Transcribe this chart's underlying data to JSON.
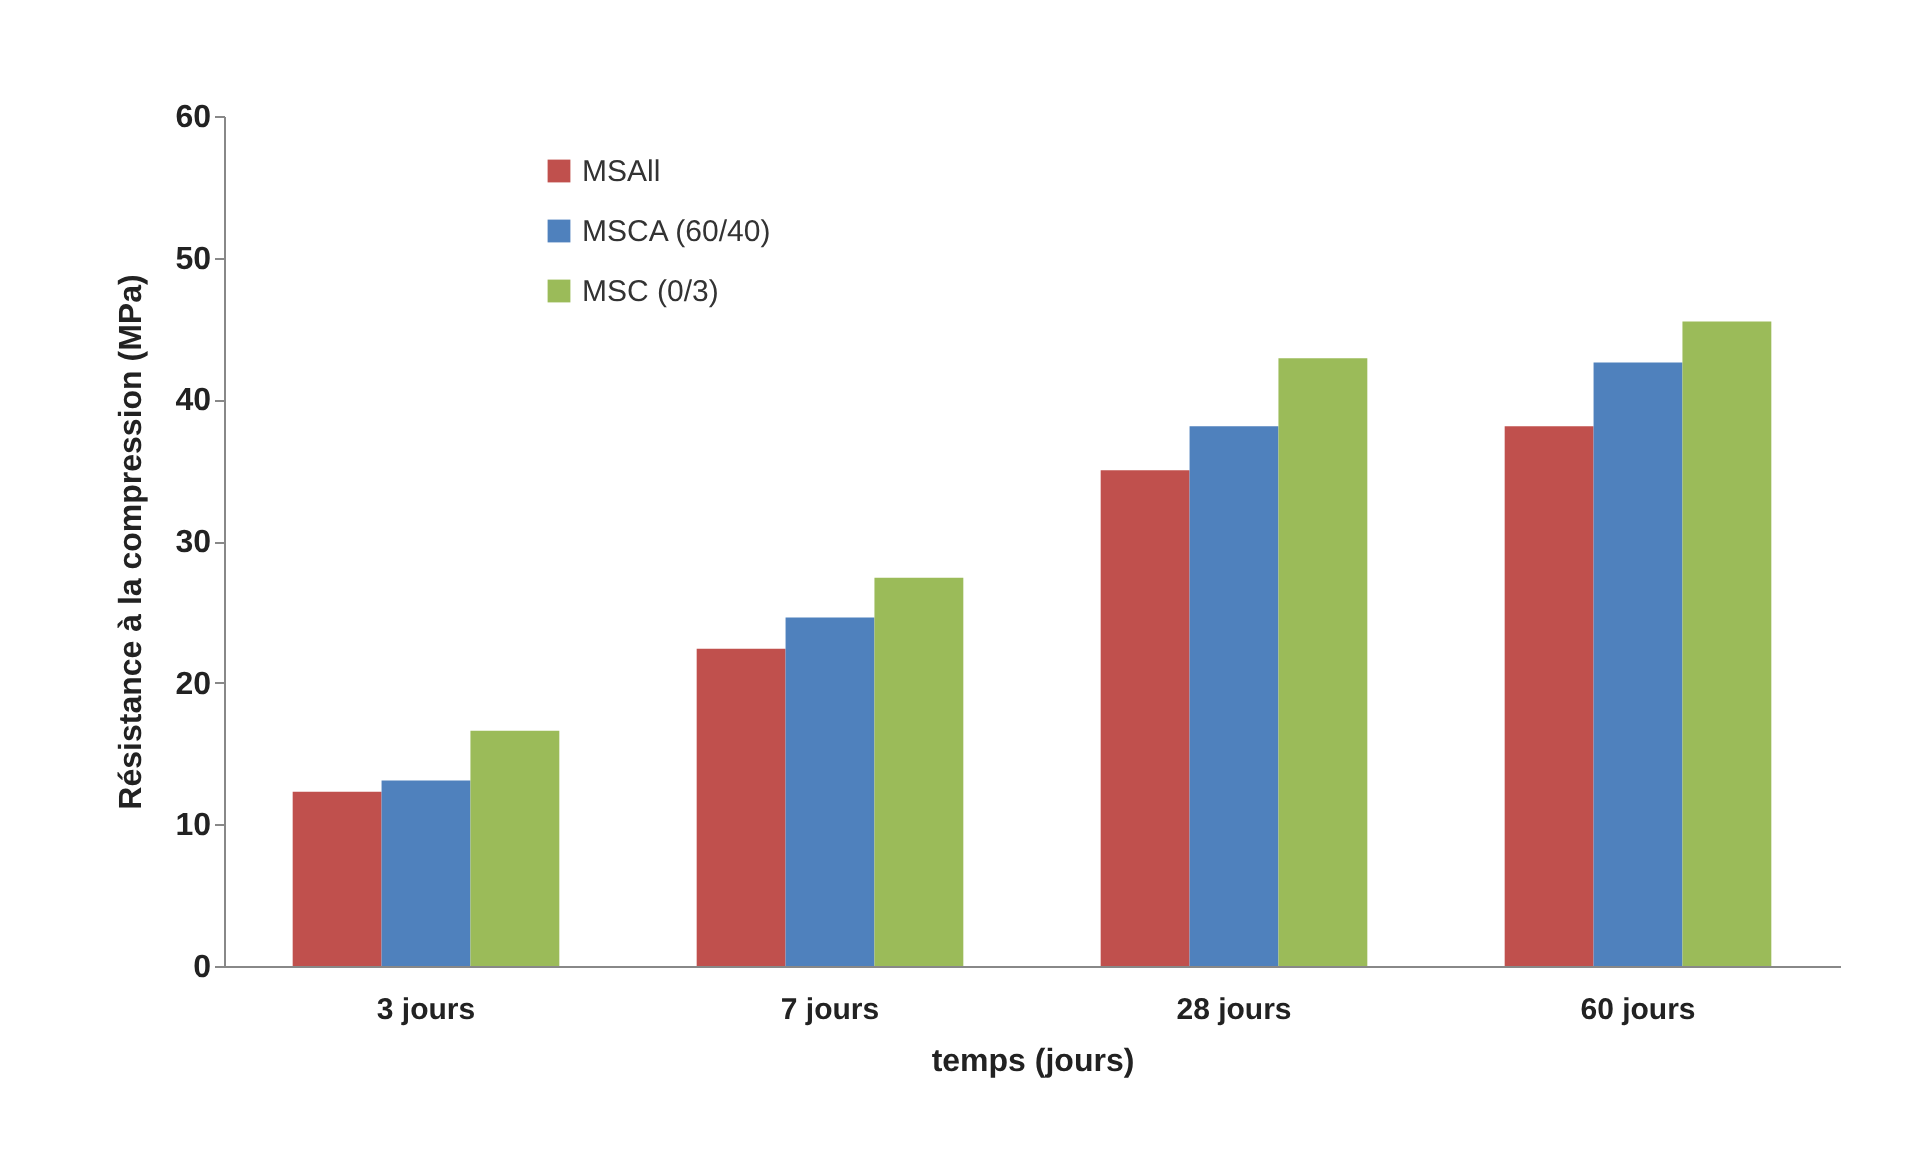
{
  "chart_data": {
    "type": "bar",
    "xlabel": "temps (jours)",
    "ylabel": "Résistance à la compression (MPa)",
    "categories": [
      "3 jours",
      "7 jours",
      "28 jours",
      "60 jours"
    ],
    "series": [
      {
        "name": "MSAll",
        "color": "#c0504d",
        "values": [
          12.3,
          22.4,
          35.0,
          38.1
        ]
      },
      {
        "name": "MSCA (60/40)",
        "color": "#4f81bd",
        "values": [
          13.1,
          24.6,
          38.1,
          42.6
        ]
      },
      {
        "name": "MSC (0/3)",
        "color": "#9bbb59",
        "values": [
          16.6,
          27.4,
          42.9,
          45.5
        ]
      }
    ],
    "ylim": [
      0,
      60
    ],
    "yticks": [
      0,
      10,
      20,
      30,
      40,
      50,
      60
    ],
    "grid": false,
    "legend": "top left"
  }
}
